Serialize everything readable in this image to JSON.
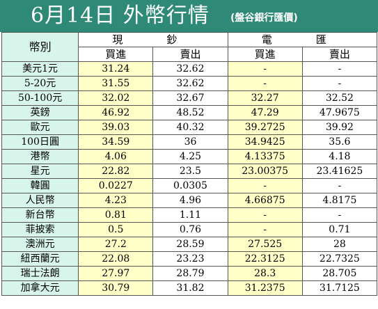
{
  "title": "6月14日 外幣行情",
  "source": "(盤谷銀行匯價)",
  "colors": {
    "title_bg": "#2e8a76",
    "label_bg": "#d8f5ec",
    "buy_bg": "#ffffc8"
  },
  "header": {
    "currency_label": "幣別",
    "cash": "現　鈔",
    "transfer": "電　匯",
    "buy": "買進",
    "sell": "賣出"
  },
  "rows": [
    {
      "name": "美元1元",
      "cash_buy": "31.24",
      "cash_sell": "32.62",
      "tt_buy": "-",
      "tt_sell": "-"
    },
    {
      "name": "5-20元",
      "cash_buy": "31.55",
      "cash_sell": "32.62",
      "tt_buy": "-",
      "tt_sell": "-"
    },
    {
      "name": "50-100元",
      "cash_buy": "32.02",
      "cash_sell": "32.67",
      "tt_buy": "32.27",
      "tt_sell": "32.52"
    },
    {
      "name": "英鎊",
      "cash_buy": "46.92",
      "cash_sell": "48.52",
      "tt_buy": "47.29",
      "tt_sell": "47.9675"
    },
    {
      "name": "歐元",
      "cash_buy": "39.03",
      "cash_sell": "40.32",
      "tt_buy": "39.2725",
      "tt_sell": "39.92"
    },
    {
      "name": "100日圓",
      "cash_buy": "34.59",
      "cash_sell": "36",
      "tt_buy": "34.9425",
      "tt_sell": "35.6"
    },
    {
      "name": "港幣",
      "cash_buy": "4.06",
      "cash_sell": "4.25",
      "tt_buy": "4.13375",
      "tt_sell": "4.18"
    },
    {
      "name": "星元",
      "cash_buy": "22.82",
      "cash_sell": "23.5",
      "tt_buy": "23.00375",
      "tt_sell": "23.41625"
    },
    {
      "name": "韓圓",
      "cash_buy": "0.0227",
      "cash_sell": "0.0305",
      "tt_buy": "-",
      "tt_sell": "-"
    },
    {
      "name": "人民幣",
      "cash_buy": "4.23",
      "cash_sell": "4.96",
      "tt_buy": "4.66875",
      "tt_sell": "4.8175"
    },
    {
      "name": "新台幣",
      "cash_buy": "0.81",
      "cash_sell": "1.11",
      "tt_buy": "-",
      "tt_sell": "-"
    },
    {
      "name": "菲披索",
      "cash_buy": "0.5",
      "cash_sell": "0.76",
      "tt_buy": "-",
      "tt_sell": "0.71"
    },
    {
      "name": "澳洲元",
      "cash_buy": "27.2",
      "cash_sell": "28.59",
      "tt_buy": "27.525",
      "tt_sell": "28"
    },
    {
      "name": "紐西蘭元",
      "cash_buy": "22.08",
      "cash_sell": "23.23",
      "tt_buy": "22.3125",
      "tt_sell": "22.7325"
    },
    {
      "name": "瑞士法朗",
      "cash_buy": "27.97",
      "cash_sell": "28.79",
      "tt_buy": "28.3",
      "tt_sell": "28.705"
    },
    {
      "name": "加拿大元",
      "cash_buy": "30.79",
      "cash_sell": "31.82",
      "tt_buy": "31.2375",
      "tt_sell": "31.7125"
    }
  ]
}
